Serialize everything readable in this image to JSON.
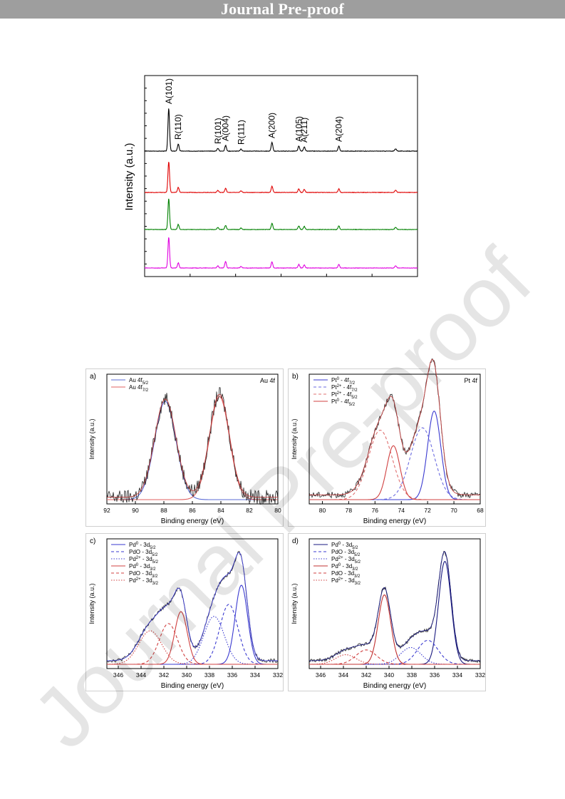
{
  "banner": {
    "text": "Journal Pre-proof"
  },
  "watermark": {
    "text": "Journal Pre-proof"
  },
  "chart_data": [
    {
      "id": "xrd",
      "type": "line",
      "ylabel": "Intensity (a.u.)",
      "xlabel": "",
      "xlim": [
        20,
        80
      ],
      "curves": [
        {
          "color": "#000000",
          "baseline": 0
        },
        {
          "color": "#e00000",
          "baseline": 0
        },
        {
          "color": "#008000",
          "baseline": 0
        },
        {
          "color": "#e000e0",
          "baseline": 0
        }
      ],
      "peaks": [
        {
          "label": "A(101)",
          "x": 25.3,
          "h": 60
        },
        {
          "label": "R(110)",
          "x": 27.4,
          "h": 10
        },
        {
          "label": "R(101)",
          "x": 36.1,
          "h": 4
        },
        {
          "label": "A(004)",
          "x": 37.8,
          "h": 8
        },
        {
          "label": "R(111)",
          "x": 41.2,
          "h": 3
        },
        {
          "label": "A(200)",
          "x": 48.0,
          "h": 12
        },
        {
          "label": "A(105)",
          "x": 53.9,
          "h": 7
        },
        {
          "label": "A(211)",
          "x": 55.1,
          "h": 6
        },
        {
          "label": "A(204)",
          "x": 62.7,
          "h": 7
        }
      ]
    },
    {
      "id": "au4f",
      "type": "line",
      "panel_label": "a)",
      "title": "Au 4f",
      "xlabel": "Binding energy (eV)",
      "ylabel": "Intensity (a.u.)",
      "xlim": [
        92,
        80
      ],
      "xticks": [
        92,
        90,
        88,
        86,
        84,
        82,
        80
      ],
      "series": [
        {
          "name": "Au 4f5/2",
          "color": "#5b6bd6",
          "dash": "solid",
          "center": 87.9,
          "height": 0.82,
          "width": 0.75
        },
        {
          "name": "Au 4f7/2",
          "color": "#e06060",
          "dash": "solid",
          "center": 84.1,
          "height": 0.86,
          "width": 0.7
        }
      ],
      "legend": [
        "Au 4f",
        "5/2",
        "Au 4f",
        "7/2"
      ]
    },
    {
      "id": "pt4f",
      "type": "line",
      "panel_label": "b)",
      "title": "Pt 4f",
      "xlabel": "Binding energy (eV)",
      "ylabel": "Intensity (a.u.)",
      "xlim": [
        81,
        68
      ],
      "xticks": [
        80,
        78,
        76,
        74,
        72,
        70,
        68
      ],
      "series": [
        {
          "name": "Pt0 - 4f7/2",
          "color": "#3a3ad0",
          "dash": "solid",
          "center": 71.5,
          "height": 0.74,
          "width": 0.5
        },
        {
          "name": "Pt2+ - 4f7/2",
          "color": "#6a6ae0",
          "dash": "dash",
          "center": 72.4,
          "height": 0.6,
          "width": 0.9
        },
        {
          "name": "Pt2+ - 4f5/2",
          "color": "#e07070",
          "dash": "dash",
          "center": 75.6,
          "height": 0.58,
          "width": 0.9
        },
        {
          "name": "Pt0 - 4f5/2",
          "color": "#d04040",
          "dash": "solid",
          "center": 74.6,
          "height": 0.45,
          "width": 0.5
        }
      ],
      "legend": [
        "Pt",
        "0",
        " - 4f",
        "7/2",
        "Pt",
        "2+",
        " - 4f",
        "7/2",
        "Pt",
        "2+",
        " - 4f",
        "5/2",
        "Pt",
        "0",
        " - 4f",
        "5/2"
      ]
    },
    {
      "id": "pd3d_c",
      "type": "line",
      "panel_label": "c)",
      "title": "",
      "xlabel": "Binding energy (eV)",
      "ylabel": "Intensity (a.u.)",
      "xlim": [
        347,
        332
      ],
      "xticks": [
        346,
        344,
        342,
        340,
        338,
        336,
        334,
        332
      ],
      "series": [
        {
          "name": "Pd0 - 3d5/2",
          "color": "#3a3ad0",
          "dash": "solid",
          "center": 335.2,
          "height": 0.66,
          "width": 0.55
        },
        {
          "name": "PdO - 3d5/2",
          "color": "#3a3ad0",
          "dash": "dash",
          "center": 336.3,
          "height": 0.5,
          "width": 0.8
        },
        {
          "name": "Pd2+ - 3d5/2",
          "color": "#3a3ad0",
          "dash": "dot",
          "center": 337.6,
          "height": 0.4,
          "width": 0.9
        },
        {
          "name": "Pd0 - 3d3/2",
          "color": "#d04040",
          "dash": "solid",
          "center": 340.5,
          "height": 0.44,
          "width": 0.55
        },
        {
          "name": "PdO - 3d3/2",
          "color": "#d04040",
          "dash": "dash",
          "center": 341.6,
          "height": 0.34,
          "width": 0.8
        },
        {
          "name": "Pd2+ - 3d3/2",
          "color": "#d04040",
          "dash": "dot",
          "center": 343.2,
          "height": 0.28,
          "width": 1.0
        }
      ]
    },
    {
      "id": "pd3d_d",
      "type": "line",
      "panel_label": "d)",
      "title": "",
      "xlabel": "Binding energy (eV)",
      "ylabel": "Intensity (a.u.)",
      "xlim": [
        347,
        332
      ],
      "xticks": [
        346,
        344,
        342,
        340,
        338,
        336,
        334,
        332
      ],
      "series": [
        {
          "name": "Pd0 - 3d5/2",
          "color": "#1a1a80",
          "dash": "solid",
          "center": 335.1,
          "height": 0.86,
          "width": 0.55
        },
        {
          "name": "PdO - 3d5/2",
          "color": "#3a3ad0",
          "dash": "dash",
          "center": 336.6,
          "height": 0.2,
          "width": 0.9
        },
        {
          "name": "Pd2+ - 3d5/2",
          "color": "#3a3ad0",
          "dash": "dot",
          "center": 338.1,
          "height": 0.14,
          "width": 0.9
        },
        {
          "name": "Pd0 - 3d3/2",
          "color": "#c03030",
          "dash": "solid",
          "center": 340.4,
          "height": 0.58,
          "width": 0.55
        },
        {
          "name": "PdO - 3d3/2",
          "color": "#d04040",
          "dash": "dash",
          "center": 342.0,
          "height": 0.12,
          "width": 0.9
        },
        {
          "name": "Pd2+ - 3d3/2",
          "color": "#d04040",
          "dash": "dot",
          "center": 343.8,
          "height": 0.08,
          "width": 0.9
        }
      ]
    }
  ]
}
